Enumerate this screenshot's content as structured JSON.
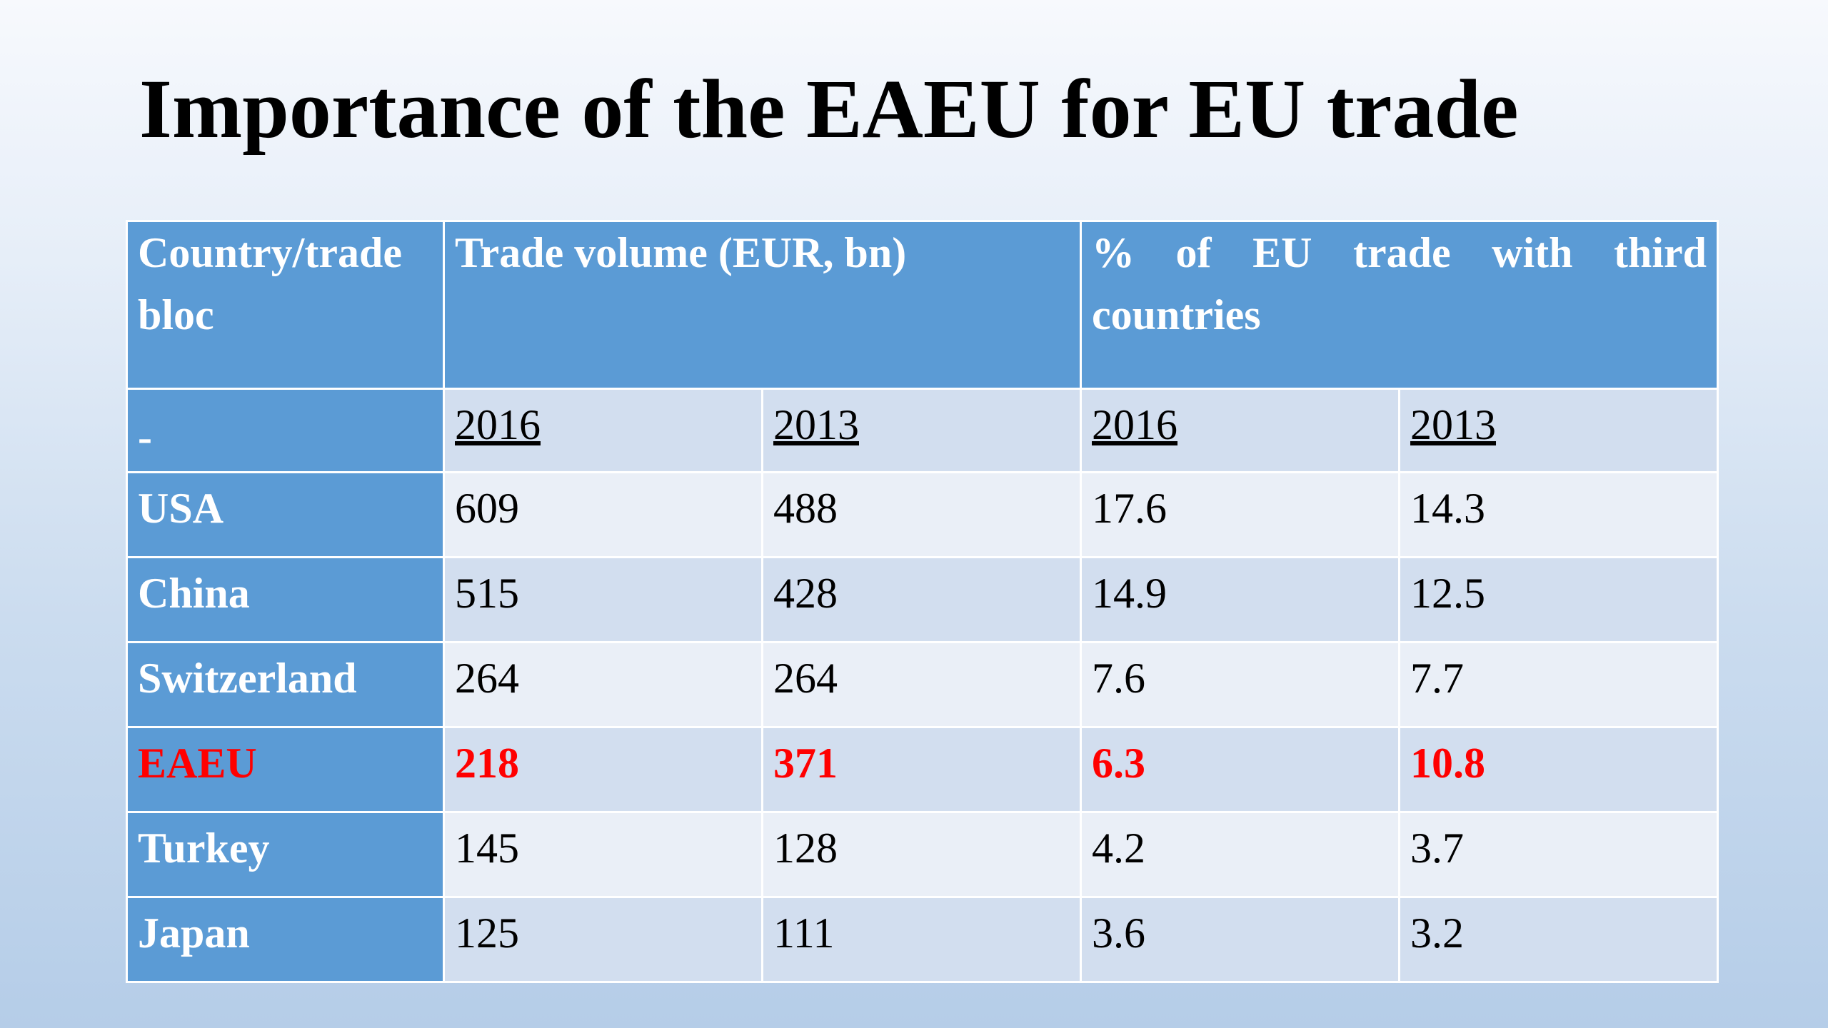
{
  "title": "Importance of the EAEU for EU trade",
  "table": {
    "headers": {
      "country": "Country/trade bloc",
      "volume": "Trade volume (EUR, bn)",
      "percent": "% of EU trade with third countries"
    },
    "subheader": {
      "label": "-",
      "years": [
        "2016",
        "2013",
        "2016",
        "2013"
      ]
    },
    "rows": [
      {
        "name": "USA",
        "cells": [
          "609",
          "488",
          "17.6",
          "14.3"
        ]
      },
      {
        "name": "China",
        "cells": [
          "515",
          "428",
          "14.9",
          "12.5"
        ]
      },
      {
        "name": "Switzerland",
        "cells": [
          "264",
          "264",
          "7.6",
          "7.7"
        ]
      },
      {
        "name": "EAEU",
        "cells": [
          "218",
          "371",
          "6.3",
          "10.8"
        ]
      },
      {
        "name": "Turkey",
        "cells": [
          "145",
          "128",
          "4.2",
          "3.7"
        ]
      },
      {
        "name": "Japan",
        "cells": [
          "125",
          "111",
          "3.6",
          "3.2"
        ]
      }
    ],
    "colors": {
      "header_bg": "#5b9bd5",
      "row_dark": "#d2deef",
      "row_light": "#eaeff7",
      "highlight": "#ff0000"
    }
  }
}
